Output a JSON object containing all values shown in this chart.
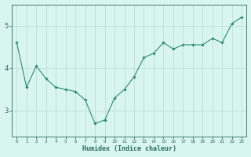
{
  "x": [
    0,
    1,
    2,
    3,
    4,
    5,
    6,
    7,
    8,
    9,
    10,
    11,
    12,
    13,
    14,
    15,
    16,
    17,
    18,
    19,
    20,
    21,
    22,
    23
  ],
  "y": [
    4.6,
    3.55,
    4.05,
    3.75,
    3.55,
    3.5,
    3.45,
    3.25,
    2.7,
    2.78,
    3.3,
    3.5,
    3.8,
    4.25,
    4.35,
    4.6,
    4.45,
    4.55,
    4.55,
    4.55,
    4.7,
    4.6,
    5.05,
    5.2
  ],
  "line_color": "#2e8b74",
  "marker": "D",
  "marker_size": 1.8,
  "line_width": 0.8,
  "xlabel": "Humidex (Indice chaleur)",
  "xlabel_fontsize": 6,
  "bg_color": "#d8f5f0",
  "grid_color": "#c0ddd8",
  "tick_color": "#2e6b60",
  "tick_label_color": "#2e6b60",
  "ylim": [
    2.4,
    5.5
  ],
  "yticks": [
    3,
    4,
    5
  ],
  "xlim": [
    -0.5,
    23.5
  ],
  "xticks": [
    0,
    1,
    2,
    3,
    4,
    5,
    6,
    7,
    8,
    9,
    10,
    11,
    12,
    13,
    14,
    15,
    16,
    17,
    18,
    19,
    20,
    21,
    22,
    23
  ],
  "xtick_labels": [
    "0",
    "1",
    "2",
    "3",
    "4",
    "5",
    "6",
    "7",
    "8",
    "9",
    "10",
    "11",
    "12",
    "13",
    "14",
    "15",
    "16",
    "17",
    "18",
    "19",
    "20",
    "21",
    "22",
    "23"
  ]
}
